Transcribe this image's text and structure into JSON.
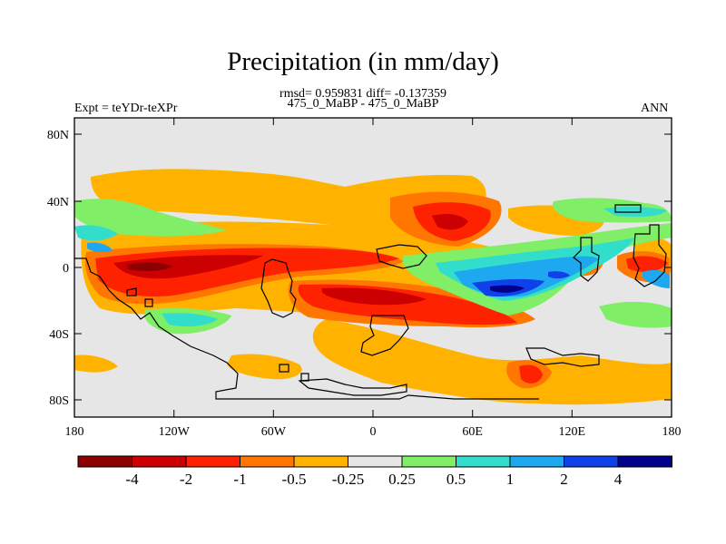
{
  "title": "Precipitation (in mm/day)",
  "stats": "rmsd= 0.959831 diff= -0.137359",
  "subtitle": "475_0_MaBP - 475_0_MaBP",
  "experiment": "Expt = teYDr-teXPr",
  "season": "ANN",
  "lat_ticks": [
    "80N",
    "40N",
    "0",
    "40S",
    "80S"
  ],
  "lon_ticks": [
    "180",
    "120W",
    "60W",
    "0",
    "60E",
    "120E",
    "180"
  ],
  "colorbar": {
    "labels": [
      "-4",
      "-2",
      "-1",
      "-0.5",
      "-0.25",
      "0.25",
      "0.5",
      "1",
      "2",
      "4"
    ],
    "colors": [
      "#8b0000",
      "#cc0000",
      "#ff2200",
      "#ff7700",
      "#ffb300",
      "#e6e6e6",
      "#80ee66",
      "#33ddcc",
      "#1ea8f0",
      "#1040e8",
      "#00008b"
    ]
  }
}
